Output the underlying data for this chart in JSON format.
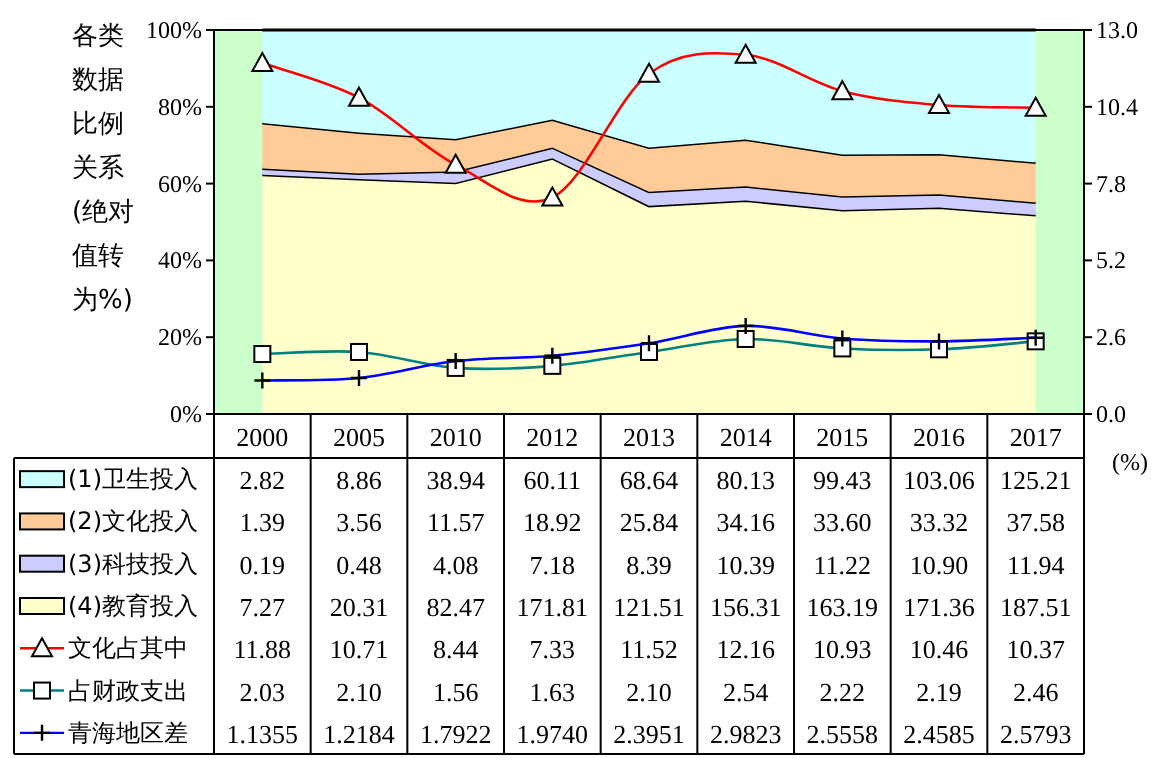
{
  "chart_data": {
    "type": "area",
    "stacked": true,
    "legend": "bottom left",
    "ylabel": "各类数据比例关系(绝对值转为%)",
    "y2label": "(%)",
    "categories": [
      "2000",
      "2005",
      "2010",
      "2012",
      "2013",
      "2014",
      "2015",
      "2016",
      "2017"
    ],
    "ylim": [
      0,
      100
    ],
    "yticks": [
      {
        "value": 0,
        "label": "0%"
      },
      {
        "value": 20,
        "label": "20%"
      },
      {
        "value": 40,
        "label": "40%"
      },
      {
        "value": 60,
        "label": "60%"
      },
      {
        "value": 80,
        "label": "80%"
      },
      {
        "value": 100,
        "label": "100%"
      }
    ],
    "y2lim": [
      0,
      13
    ],
    "y2ticks": [
      {
        "value": 0,
        "label": "0.0"
      },
      {
        "value": 2.6,
        "label": "2.6"
      },
      {
        "value": 5.2,
        "label": "5.2"
      },
      {
        "value": 7.8,
        "label": "7.8"
      },
      {
        "value": 10.4,
        "label": "10.4"
      },
      {
        "value": 13,
        "label": "13.0"
      }
    ],
    "annotations": [
      "2.82",
      "8.86",
      "38.94",
      "60.11",
      "68.64",
      "80.13",
      "99.43",
      "103.06",
      "125.21",
      "1.39",
      "3.56",
      "11.57",
      "18.92",
      "25.84",
      "34.16",
      "33.60",
      "33.32",
      "37.58",
      "0.19",
      "0.48",
      "4.08",
      "7.18",
      "8.39",
      "10.39",
      "11.22",
      "10.90",
      "11.94",
      "7.27",
      "20.31",
      "82.47",
      "171.81",
      "121.51",
      "156.31",
      "163.19",
      "171.36",
      "187.51"
    ],
    "series": [
      {
        "name": "(4)教育投入",
        "color": "#ffffcc",
        "values": [
          62.3,
          61.2,
          60.2,
          66.6,
          54.2,
          55.6,
          53.1,
          53.8,
          51.8
        ]
      },
      {
        "name": "(3)科技投入",
        "color": "#ccccff",
        "values": [
          1.6,
          1.4,
          3.0,
          2.8,
          3.7,
          3.7,
          3.6,
          3.4,
          3.3
        ]
      },
      {
        "name": "(2)文化投入",
        "color": "#ffcc99",
        "values": [
          11.9,
          10.7,
          8.4,
          7.3,
          11.5,
          12.2,
          10.9,
          10.5,
          10.4
        ]
      },
      {
        "name": "(1)卫生投入",
        "color": "#ccffff",
        "values": [
          24.2,
          26.7,
          28.4,
          23.3,
          30.6,
          28.5,
          32.4,
          32.3,
          34.5
        ]
      },
      {
        "name": "文化占其中",
        "type": "line",
        "axis": "y2",
        "marker": "triangle",
        "color": "#ff0000",
        "values": [
          11.88,
          10.71,
          8.44,
          7.33,
          11.52,
          12.16,
          10.93,
          10.46,
          10.37
        ],
        "value_labels": [
          "11.88",
          "10.71",
          "8.44",
          "7.33",
          "11.52",
          "12.16",
          "10.93",
          "10.46",
          "10.37"
        ]
      },
      {
        "name": "占财政支出",
        "type": "line",
        "axis": "y2",
        "marker": "square",
        "color": "#008080",
        "values": [
          2.03,
          2.1,
          1.56,
          1.63,
          2.1,
          2.54,
          2.22,
          2.19,
          2.46
        ],
        "value_labels": [
          "2.03",
          "2.10",
          "1.56",
          "1.63",
          "2.10",
          "2.54",
          "2.22",
          "2.19",
          "2.46"
        ]
      },
      {
        "name": "青海地区差",
        "type": "line",
        "axis": "y2",
        "marker": "cross",
        "color": "#0000ff",
        "values": [
          1.1355,
          1.2184,
          1.7922,
          1.974,
          2.3951,
          2.9823,
          2.5558,
          2.4585,
          2.5793
        ],
        "value_labels": [
          "1.1355",
          "1.2184",
          "1.7922",
          "1.9740",
          "2.3951",
          "2.9823",
          "2.5558",
          "2.4585",
          "2.5793"
        ]
      }
    ]
  }
}
